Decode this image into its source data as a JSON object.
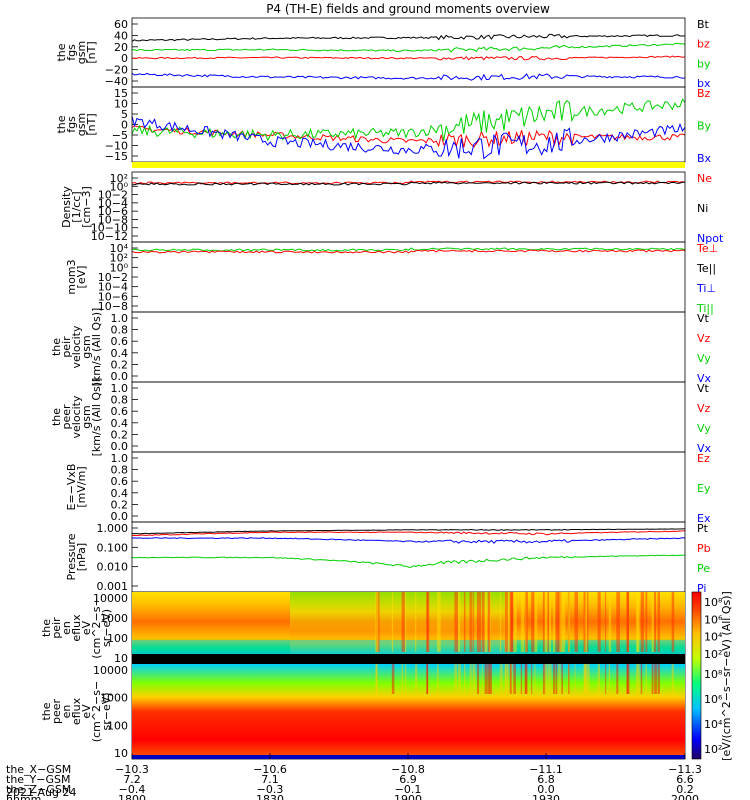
{
  "title": "P4 (TH-E) fields and ground moments overview",
  "colors": {
    "black": "#000000",
    "red": "#ff0000",
    "green": "#00d000",
    "blue": "#0000ff",
    "yellow": "#ffff00"
  },
  "panels": [
    {
      "ylabel": [
        "the",
        "fgs",
        "gsm",
        "[nT]"
      ],
      "ticks": [
        "60",
        "40",
        "20",
        "0",
        "−20",
        "−40"
      ],
      "legend": [
        {
          "text": "Bt",
          "color": "black"
        },
        {
          "text": "bz",
          "color": "red"
        },
        {
          "text": "by",
          "color": "green"
        },
        {
          "text": "bx",
          "color": "blue"
        }
      ]
    },
    {
      "ylabel": [
        "the",
        "fgs",
        "gsm",
        "[nT]"
      ],
      "ticks": [
        "15",
        "10",
        "5",
        "0",
        "−5",
        "−10",
        "−15"
      ],
      "legend": [
        {
          "text": "Bz",
          "color": "red"
        },
        {
          "text": "By",
          "color": "green"
        },
        {
          "text": "Bx",
          "color": "blue"
        }
      ]
    },
    {
      "ylabel": [
        "Density",
        "[1/cc]",
        "[cm−3]"
      ],
      "ticks": [
        "10²",
        "10⁰",
        "10−2",
        "10−4",
        "10−6",
        "10−8",
        "10−10",
        "10−12"
      ],
      "legend": [
        {
          "text": "Ne",
          "color": "red"
        },
        {
          "text": "Ni",
          "color": "black"
        },
        {
          "text": "Npot",
          "color": "blue"
        }
      ]
    },
    {
      "ylabel": [
        "mom3",
        "[eV]"
      ],
      "ticks": [
        "10⁴",
        "10²",
        "10⁰",
        "10−2",
        "10−4",
        "10−6",
        "10−8"
      ],
      "legend": [
        {
          "text": "Te⊥",
          "color": "red"
        },
        {
          "text": "Te||",
          "color": "black"
        },
        {
          "text": "Ti⊥",
          "color": "blue"
        },
        {
          "text": "Ti||",
          "color": "green"
        }
      ]
    },
    {
      "ylabel": [
        "the",
        "peir",
        "velocity",
        "gsm",
        "[km/s (All Qs)]"
      ],
      "ticks": [
        "1.0",
        "0.8",
        "0.6",
        "0.4",
        "0.2",
        "0.0"
      ],
      "legend": [
        {
          "text": "Vt",
          "color": "black"
        },
        {
          "text": "Vz",
          "color": "red"
        },
        {
          "text": "Vy",
          "color": "green"
        },
        {
          "text": "Vx",
          "color": "blue"
        }
      ]
    },
    {
      "ylabel": [
        "the",
        "peer",
        "velocity",
        "gsm",
        "[km/s (All Qs)]"
      ],
      "ticks": [
        "1.0",
        "0.8",
        "0.6",
        "0.4",
        "0.2",
        "0.0"
      ],
      "legend": [
        {
          "text": "Vt",
          "color": "black"
        },
        {
          "text": "Vz",
          "color": "red"
        },
        {
          "text": "Vy",
          "color": "green"
        },
        {
          "text": "Vx",
          "color": "blue"
        }
      ]
    },
    {
      "ylabel": [
        "E=−VxB",
        "[mV/m]"
      ],
      "ticks": [
        "1.0",
        "0.8",
        "0.6",
        "0.4",
        "0.2",
        "0.0"
      ],
      "legend": [
        {
          "text": "Ez",
          "color": "red"
        },
        {
          "text": "Ey",
          "color": "green"
        },
        {
          "text": "Ex",
          "color": "blue"
        }
      ]
    },
    {
      "ylabel": [
        "Pressure",
        "[nPa]"
      ],
      "ticks": [
        "1.000",
        "0.100",
        "0.010",
        "0.001"
      ],
      "legend": [
        {
          "text": "Pt",
          "color": "black"
        },
        {
          "text": "Pb",
          "color": "red"
        },
        {
          "text": "Pe",
          "color": "green"
        },
        {
          "text": "Pi",
          "color": "blue"
        }
      ]
    },
    {
      "ylabel": [
        "the",
        "peir",
        "en",
        "eflux",
        "eV",
        "(cm^2−s−",
        "sr−eV)"
      ],
      "ticks": [
        "10000",
        "1000",
        "100",
        "10"
      ]
    },
    {
      "ylabel": [
        "the",
        "peer",
        "en",
        "eflux",
        "eV",
        "(cm^2−s−",
        "sr−eV)"
      ],
      "ticks": [
        "10000",
        "1000",
        "100",
        "10"
      ]
    }
  ],
  "colorbar": {
    "top_ticks": [
      "10⁸",
      "10⁶",
      "10⁴",
      "10²"
    ],
    "bottom_ticks": [
      "10⁸",
      "10⁶",
      "10⁴",
      "10²"
    ],
    "label": "[eV/(cm^2−s−sr−eV) (All Qs)]"
  },
  "footer": {
    "rows": [
      {
        "label": "the_X−GSM",
        "values": [
          "−10.3",
          "−10.6",
          "−10.8",
          "−11.1",
          "−11.3"
        ]
      },
      {
        "label": "the_Y−GSM",
        "values": [
          "7.2",
          "7.1",
          "6.9",
          "6.8",
          "6.6"
        ]
      },
      {
        "label": "the_Z−GSM",
        "values": [
          "−0.4",
          "−0.3",
          "−0.1",
          "0.0",
          "0.2"
        ]
      },
      {
        "label": "hhmm",
        "values": [
          "1800",
          "1830",
          "1900",
          "1930",
          "2000"
        ]
      }
    ],
    "date": "2021 Aug 24"
  },
  "chart_data": {
    "type": "line",
    "x": [
      "1800",
      "1830",
      "1900",
      "1930",
      "2000"
    ],
    "series": [
      {
        "name": "Bt",
        "panel": 0,
        "values": [
          31,
          35,
          36,
          38,
          40
        ]
      },
      {
        "name": "bz",
        "panel": 0,
        "values": [
          0,
          1,
          0,
          0,
          3
        ]
      },
      {
        "name": "by",
        "panel": 0,
        "values": [
          14,
          15,
          13,
          18,
          25
        ]
      },
      {
        "name": "bx",
        "panel": 0,
        "values": [
          -28,
          -33,
          -35,
          -32,
          -33
        ]
      },
      {
        "name": "Bz",
        "panel": 1,
        "values": [
          -2,
          -5,
          -8,
          -6,
          -6
        ]
      },
      {
        "name": "By",
        "panel": 1,
        "values": [
          -3,
          -5,
          -4,
          5,
          10
        ]
      },
      {
        "name": "Bx",
        "panel": 1,
        "values": [
          2,
          -8,
          -12,
          -9,
          -2
        ]
      },
      {
        "name": "Pt",
        "panel": 7,
        "values": [
          0.5,
          0.7,
          0.8,
          0.8,
          0.9
        ]
      },
      {
        "name": "Pb",
        "panel": 7,
        "values": [
          0.4,
          0.6,
          0.6,
          0.5,
          0.7
        ]
      },
      {
        "name": "Pe",
        "panel": 7,
        "values": [
          0.03,
          0.03,
          0.01,
          0.03,
          0.04
        ]
      },
      {
        "name": "Pi",
        "panel": 7,
        "values": [
          0.3,
          0.3,
          0.2,
          0.2,
          0.3
        ]
      }
    ]
  }
}
